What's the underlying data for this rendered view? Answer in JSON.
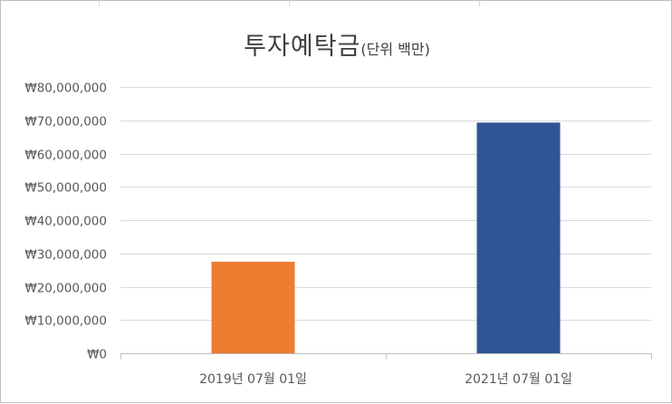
{
  "chart_data": {
    "type": "bar",
    "title": "투자예탁금",
    "subtitle": "(단위 백만)",
    "categories": [
      "2019년 07월 01일",
      "2021년 07월 01일"
    ],
    "values": [
      27500000,
      69300000
    ],
    "bar_colors": [
      "#ED7D31",
      "#2F5597"
    ],
    "ylim": [
      0,
      80000000
    ],
    "yticks": [
      0,
      10000000,
      20000000,
      30000000,
      40000000,
      50000000,
      60000000,
      70000000,
      80000000
    ],
    "ytick_labels": [
      "₩0",
      "₩10,000,000",
      "₩20,000,000",
      "₩30,000,000",
      "₩40,000,000",
      "₩50,000,000",
      "₩60,000,000",
      "₩70,000,000",
      "₩80,000,000"
    ],
    "xlabel": "",
    "ylabel": "",
    "grid": true,
    "legend": "none"
  }
}
